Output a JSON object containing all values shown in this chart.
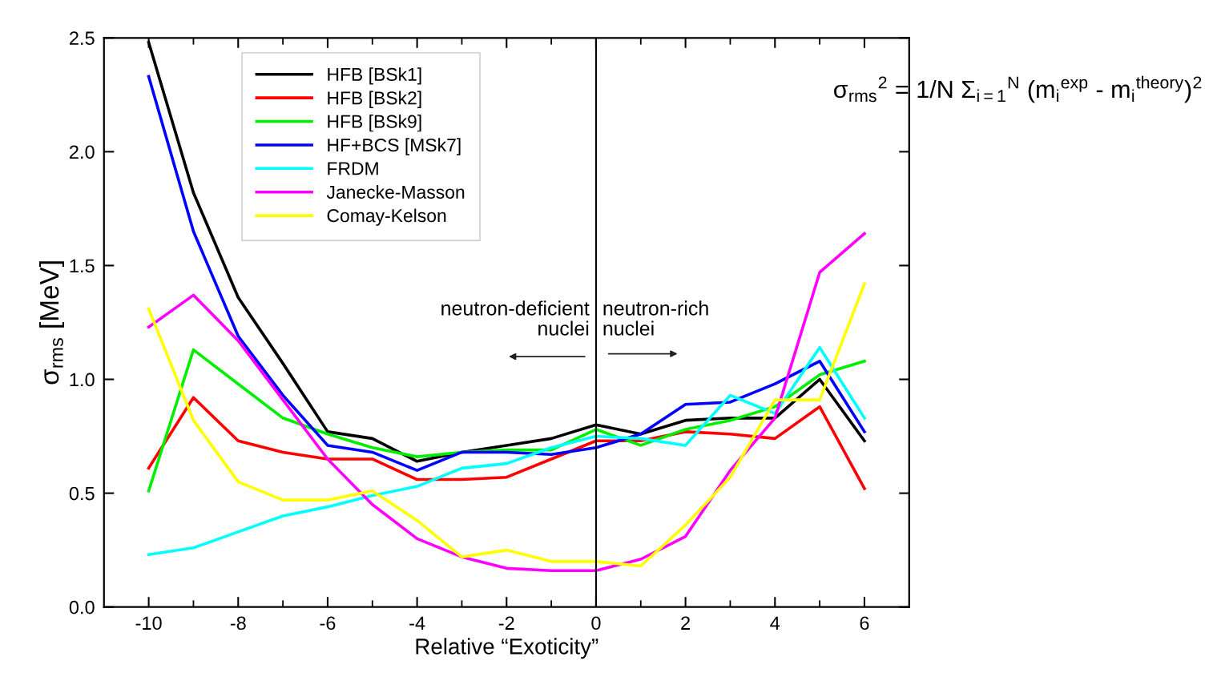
{
  "chart_data": {
    "type": "line",
    "xlabel": "Relative “Exoticity”",
    "ylabel": "σ$_{rms}$ [MeV]",
    "x": [
      -10,
      -9,
      -8,
      -7,
      -6,
      -5,
      -4,
      -3,
      -2,
      -1,
      0,
      1,
      2,
      3,
      4,
      5,
      6
    ],
    "series": [
      {
        "name": "HFB [BSk1]",
        "color": "#000000",
        "values": [
          2.48,
          1.82,
          1.36,
          1.07,
          0.77,
          0.74,
          0.64,
          0.68,
          0.71,
          0.74,
          0.8,
          0.76,
          0.82,
          0.83,
          0.83,
          1.0,
          0.73
        ]
      },
      {
        "name": "HFB [BSk2]",
        "color": "#ff0000",
        "values": [
          0.61,
          0.92,
          0.73,
          0.68,
          0.65,
          0.65,
          0.56,
          0.56,
          0.57,
          0.65,
          0.73,
          0.73,
          0.77,
          0.76,
          0.74,
          0.88,
          0.52
        ]
      },
      {
        "name": "HFB [BSk9]",
        "color": "#00ee00",
        "values": [
          0.51,
          1.13,
          0.98,
          0.83,
          0.76,
          0.7,
          0.66,
          0.68,
          0.69,
          0.69,
          0.78,
          0.71,
          0.78,
          0.82,
          0.88,
          1.02,
          1.08
        ]
      },
      {
        "name": "HF+BCS [MSk7]",
        "color": "#0000ff",
        "values": [
          2.33,
          1.65,
          1.19,
          0.93,
          0.71,
          0.68,
          0.6,
          0.68,
          0.68,
          0.67,
          0.7,
          0.76,
          0.89,
          0.9,
          0.98,
          1.08,
          0.77
        ]
      },
      {
        "name": "FRDM",
        "color": "#00ffff",
        "values": [
          0.23,
          0.26,
          0.33,
          0.4,
          0.44,
          0.49,
          0.53,
          0.61,
          0.63,
          0.7,
          0.75,
          0.74,
          0.71,
          0.93,
          0.85,
          1.14,
          0.83
        ]
      },
      {
        "name": "Janecke-Masson",
        "color": "#ff00ff",
        "values": [
          1.23,
          1.37,
          1.17,
          0.91,
          0.65,
          0.45,
          0.3,
          0.22,
          0.17,
          0.16,
          0.16,
          0.21,
          0.31,
          0.6,
          0.83,
          1.47,
          1.64
        ]
      },
      {
        "name": "Comay-Kelson",
        "color": "#ffff00",
        "values": [
          1.31,
          0.82,
          0.55,
          0.47,
          0.47,
          0.51,
          0.38,
          0.22,
          0.25,
          0.2,
          0.2,
          0.18,
          0.36,
          0.57,
          0.91,
          0.91,
          1.42
        ]
      }
    ],
    "xlim": [
      -11,
      7
    ],
    "xticks": [
      -10,
      -8,
      -6,
      -4,
      -2,
      0,
      2,
      4,
      6
    ],
    "ylim": [
      0,
      2.5
    ],
    "yticks": [
      {
        "value": 0,
        "label": "0.0"
      },
      0.5,
      {
        "value": 1,
        "label": "1.0"
      },
      1.5,
      {
        "value": 2,
        "label": "2.0"
      },
      2.5
    ],
    "ref_lines": [
      {
        "axis": "x",
        "value": 0,
        "color": "#000000",
        "line_style": "solid"
      }
    ],
    "annotations": [
      "neutron-deficient\nnuclei",
      "neutron-rich\nnuclei",
      "σ$_{rms}$$^{2}$ = 1/N Σ$_{i=1}$$^{N}$ (m$_{i}$$^{exp}$ - m$_{i}$$^{theory}$)$^{2}$"
    ],
    "legend": "top left",
    "grid": false,
    "marker": "none",
    "line_style": "solid"
  }
}
